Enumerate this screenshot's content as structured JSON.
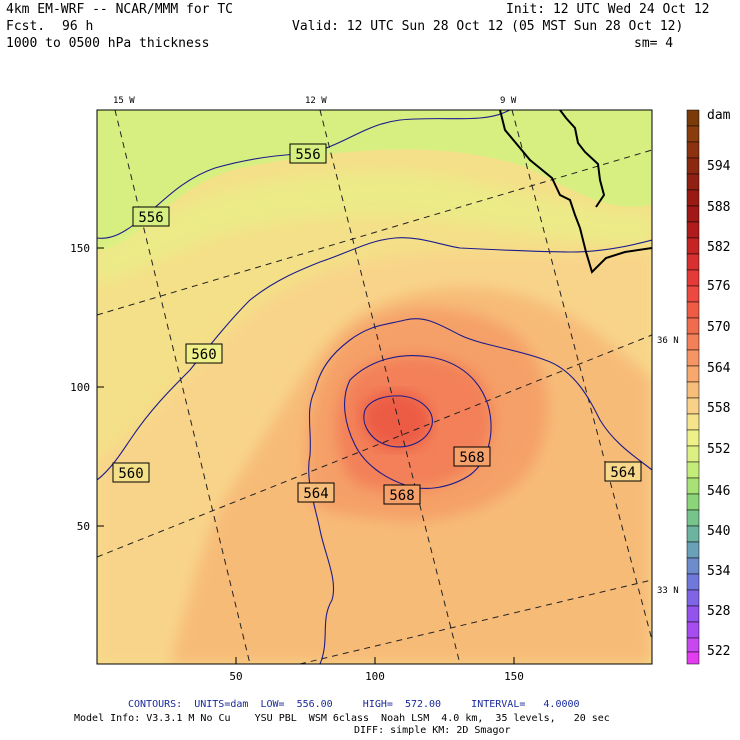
{
  "header": {
    "model": "4km EM-WRF -- NCAR/MMM for TC",
    "fcst_label": "Fcst.",
    "fcst_hours": "96 h",
    "field": "1000 to 0500 hPa thickness",
    "init": "Init: 12 UTC Wed 24 Oct 12",
    "valid": "Valid: 12 UTC Sun 28 Oct 12 (05 MST Sun 28 Oct 12)",
    "smoothing": "sm= 4"
  },
  "map": {
    "lon_labels": [
      "15 W",
      "12 W",
      "9 W"
    ],
    "lat_labels": [
      "36 N",
      "33 N"
    ],
    "x_ticks": [
      "50",
      "100",
      "150"
    ],
    "y_ticks": [
      "150",
      "100",
      "50"
    ],
    "contour_labels": [
      "556",
      "556",
      "560",
      "560",
      "564",
      "564",
      "568",
      "568"
    ]
  },
  "colorbar": {
    "unit": "dam",
    "levels": [
      "594",
      "588",
      "582",
      "576",
      "570",
      "564",
      "558",
      "552",
      "546",
      "540",
      "534",
      "528",
      "522"
    ]
  },
  "footer": {
    "contours": "CONTOURS:  UNITS=dam  LOW=  556.00     HIGH=  572.00     INTERVAL=   4.0000",
    "model_info": "Model Info: V3.3.1 M No Cu    YSU PBL  WSM 6class  Noah LSM  4.0 km,  35 levels,   20 sec",
    "diff": "DIFF: simple KM: 2D Smagor"
  },
  "colors": {
    "contour": "#1c1c8c",
    "coastline": "#000000",
    "band_556": "#d6ef80",
    "band_558": "#f0f08a",
    "band_562": "#f8d88a",
    "band_564": "#f7bd7a",
    "band_566": "#f6a06a",
    "band_568": "#f48058",
    "band_570": "#ee6048"
  }
}
